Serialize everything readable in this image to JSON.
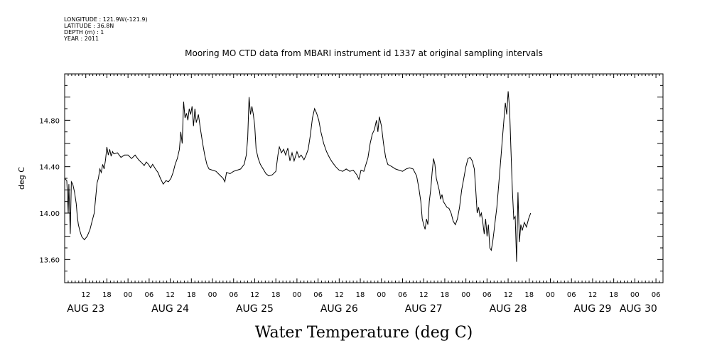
{
  "meta": {
    "lines": [
      "LONGITUDE : 121.9W(-121.9)",
      "LATITUDE : 36.8N",
      "DEPTH (m) : 1",
      "YEAR : 2011"
    ]
  },
  "chart_data": {
    "type": "line",
    "title": "Mooring MO CTD data from MBARI instrument id 1337 at original sampling intervals",
    "xlabel": "Water Temperature (deg C)",
    "ylabel": "deg C",
    "x_units": "hours since Aug 22 2011 00:00",
    "xlim": [
      6,
      176
    ],
    "ylim": [
      13.4,
      15.2
    ],
    "yticks": [
      13.6,
      14.0,
      14.4,
      14.8
    ],
    "ytick_labels": [
      "13.60",
      "14.00",
      "14.40",
      "14.80"
    ],
    "xticks": [
      {
        "t": 12,
        "label": "12"
      },
      {
        "t": 18,
        "label": "18"
      },
      {
        "t": 24,
        "label": "00"
      },
      {
        "t": 30,
        "label": "06"
      },
      {
        "t": 36,
        "label": "12"
      },
      {
        "t": 42,
        "label": "18"
      },
      {
        "t": 48,
        "label": "00"
      },
      {
        "t": 54,
        "label": "06"
      },
      {
        "t": 60,
        "label": "12"
      },
      {
        "t": 66,
        "label": "18"
      },
      {
        "t": 72,
        "label": "00"
      },
      {
        "t": 78,
        "label": "06"
      },
      {
        "t": 84,
        "label": "12"
      },
      {
        "t": 90,
        "label": "18"
      },
      {
        "t": 96,
        "label": "00"
      },
      {
        "t": 102,
        "label": "06"
      },
      {
        "t": 108,
        "label": "12"
      },
      {
        "t": 114,
        "label": "18"
      },
      {
        "t": 120,
        "label": "00"
      },
      {
        "t": 126,
        "label": "06"
      },
      {
        "t": 132,
        "label": "12"
      },
      {
        "t": 138,
        "label": "18"
      },
      {
        "t": 144,
        "label": "00"
      },
      {
        "t": 150,
        "label": "06"
      },
      {
        "t": 156,
        "label": "12"
      },
      {
        "t": 162,
        "label": "18"
      },
      {
        "t": 168,
        "label": "00"
      },
      {
        "t": 174,
        "label": "06"
      }
    ],
    "date_labels": [
      {
        "t": 12,
        "label": "AUG 23"
      },
      {
        "t": 36,
        "label": "AUG 24"
      },
      {
        "t": 60,
        "label": "AUG 25"
      },
      {
        "t": 84,
        "label": "AUG 26"
      },
      {
        "t": 108,
        "label": "AUG 27"
      },
      {
        "t": 132,
        "label": "AUG 28"
      },
      {
        "t": 156,
        "label": "AUG 29"
      },
      {
        "t": 169,
        "label": "AUG 30"
      }
    ],
    "series": [
      {
        "values": [
          [
            6.0,
            14.3
          ],
          [
            6.6,
            14.28
          ],
          [
            7.0,
            14.0
          ],
          [
            7.2,
            14.25
          ],
          [
            7.6,
            13.82
          ],
          [
            7.9,
            14.27
          ],
          [
            8.3,
            14.25
          ],
          [
            8.8,
            14.18
          ],
          [
            9.3,
            14.08
          ],
          [
            9.6,
            13.97
          ],
          [
            9.9,
            13.9
          ],
          [
            10.3,
            13.85
          ],
          [
            10.8,
            13.8
          ],
          [
            11.6,
            13.77
          ],
          [
            12.4,
            13.8
          ],
          [
            13.2,
            13.86
          ],
          [
            13.8,
            13.93
          ],
          [
            14.4,
            14.0
          ],
          [
            14.8,
            14.13
          ],
          [
            15.2,
            14.26
          ],
          [
            15.6,
            14.3
          ],
          [
            16.0,
            14.38
          ],
          [
            16.4,
            14.35
          ],
          [
            16.8,
            14.42
          ],
          [
            17.2,
            14.38
          ],
          [
            17.6,
            14.46
          ],
          [
            18.0,
            14.57
          ],
          [
            18.4,
            14.5
          ],
          [
            18.8,
            14.55
          ],
          [
            19.2,
            14.49
          ],
          [
            19.6,
            14.53
          ],
          [
            20.0,
            14.51
          ],
          [
            21.0,
            14.52
          ],
          [
            22.0,
            14.48
          ],
          [
            23.0,
            14.5
          ],
          [
            24.0,
            14.5
          ],
          [
            25.0,
            14.47
          ],
          [
            26.0,
            14.5
          ],
          [
            27.0,
            14.46
          ],
          [
            28.0,
            14.43
          ],
          [
            28.6,
            14.41
          ],
          [
            29.2,
            14.44
          ],
          [
            29.8,
            14.42
          ],
          [
            30.4,
            14.39
          ],
          [
            31.0,
            14.42
          ],
          [
            31.8,
            14.38
          ],
          [
            32.5,
            14.35
          ],
          [
            33.2,
            14.3
          ],
          [
            34.0,
            14.25
          ],
          [
            34.8,
            14.28
          ],
          [
            35.5,
            14.27
          ],
          [
            36.2,
            14.3
          ],
          [
            36.8,
            14.35
          ],
          [
            37.4,
            14.42
          ],
          [
            38.0,
            14.47
          ],
          [
            38.6,
            14.55
          ],
          [
            39.0,
            14.7
          ],
          [
            39.4,
            14.6
          ],
          [
            39.8,
            14.96
          ],
          [
            40.2,
            14.82
          ],
          [
            40.6,
            14.86
          ],
          [
            41.0,
            14.8
          ],
          [
            41.4,
            14.9
          ],
          [
            41.8,
            14.85
          ],
          [
            42.2,
            14.92
          ],
          [
            42.6,
            14.75
          ],
          [
            43.0,
            14.9
          ],
          [
            43.4,
            14.78
          ],
          [
            44.0,
            14.85
          ],
          [
            44.6,
            14.72
          ],
          [
            45.2,
            14.6
          ],
          [
            45.8,
            14.5
          ],
          [
            46.4,
            14.42
          ],
          [
            47.0,
            14.38
          ],
          [
            48.0,
            14.37
          ],
          [
            49.0,
            14.36
          ],
          [
            50.0,
            14.33
          ],
          [
            51.0,
            14.3
          ],
          [
            51.5,
            14.27
          ],
          [
            52.0,
            14.35
          ],
          [
            53.0,
            14.34
          ],
          [
            54.0,
            14.36
          ],
          [
            55.0,
            14.37
          ],
          [
            56.0,
            14.38
          ],
          [
            57.0,
            14.42
          ],
          [
            57.6,
            14.5
          ],
          [
            58.0,
            14.65
          ],
          [
            58.4,
            15.0
          ],
          [
            58.8,
            14.85
          ],
          [
            59.2,
            14.92
          ],
          [
            59.6,
            14.85
          ],
          [
            60.0,
            14.75
          ],
          [
            60.4,
            14.55
          ],
          [
            61.0,
            14.47
          ],
          [
            61.6,
            14.42
          ],
          [
            62.4,
            14.38
          ],
          [
            63.2,
            14.34
          ],
          [
            64.0,
            14.32
          ],
          [
            65.0,
            14.33
          ],
          [
            66.0,
            14.36
          ],
          [
            66.6,
            14.5
          ],
          [
            67.0,
            14.57
          ],
          [
            67.6,
            14.52
          ],
          [
            68.2,
            14.55
          ],
          [
            68.8,
            14.5
          ],
          [
            69.4,
            14.56
          ],
          [
            70.0,
            14.45
          ],
          [
            70.6,
            14.52
          ],
          [
            71.2,
            14.45
          ],
          [
            72.0,
            14.53
          ],
          [
            72.6,
            14.48
          ],
          [
            73.2,
            14.5
          ],
          [
            74.0,
            14.46
          ],
          [
            74.6,
            14.5
          ],
          [
            75.2,
            14.55
          ],
          [
            75.8,
            14.67
          ],
          [
            76.4,
            14.82
          ],
          [
            77.0,
            14.9
          ],
          [
            77.6,
            14.86
          ],
          [
            78.2,
            14.8
          ],
          [
            78.8,
            14.7
          ],
          [
            79.6,
            14.6
          ],
          [
            80.4,
            14.53
          ],
          [
            81.2,
            14.48
          ],
          [
            82.0,
            14.44
          ],
          [
            83.0,
            14.4
          ],
          [
            84.0,
            14.37
          ],
          [
            85.0,
            14.36
          ],
          [
            86.0,
            14.38
          ],
          [
            87.0,
            14.36
          ],
          [
            88.0,
            14.37
          ],
          [
            89.0,
            14.33
          ],
          [
            89.6,
            14.29
          ],
          [
            90.2,
            14.37
          ],
          [
            91.0,
            14.36
          ],
          [
            91.6,
            14.42
          ],
          [
            92.2,
            14.48
          ],
          [
            92.8,
            14.6
          ],
          [
            93.4,
            14.68
          ],
          [
            94.0,
            14.72
          ],
          [
            94.6,
            14.8
          ],
          [
            95.0,
            14.7
          ],
          [
            95.4,
            14.83
          ],
          [
            96.0,
            14.75
          ],
          [
            96.6,
            14.6
          ],
          [
            97.2,
            14.48
          ],
          [
            97.8,
            14.42
          ],
          [
            98.4,
            14.41
          ],
          [
            99.0,
            14.4
          ],
          [
            100.0,
            14.38
          ],
          [
            101.0,
            14.37
          ],
          [
            102.0,
            14.36
          ],
          [
            103.0,
            14.38
          ],
          [
            104.0,
            14.39
          ],
          [
            105.0,
            14.38
          ],
          [
            106.0,
            14.32
          ],
          [
            106.6,
            14.22
          ],
          [
            107.2,
            14.1
          ],
          [
            107.6,
            13.95
          ],
          [
            108.0,
            13.9
          ],
          [
            108.4,
            13.86
          ],
          [
            108.8,
            13.95
          ],
          [
            109.2,
            13.9
          ],
          [
            109.6,
            14.1
          ],
          [
            110.0,
            14.2
          ],
          [
            110.4,
            14.35
          ],
          [
            110.8,
            14.47
          ],
          [
            111.2,
            14.42
          ],
          [
            111.6,
            14.3
          ],
          [
            112.0,
            14.25
          ],
          [
            112.4,
            14.2
          ],
          [
            112.8,
            14.12
          ],
          [
            113.2,
            14.16
          ],
          [
            113.6,
            14.1
          ],
          [
            114.0,
            14.08
          ],
          [
            114.6,
            14.05
          ],
          [
            115.2,
            14.04
          ],
          [
            115.8,
            14.0
          ],
          [
            116.4,
            13.93
          ],
          [
            117.0,
            13.9
          ],
          [
            117.6,
            13.95
          ],
          [
            118.2,
            14.05
          ],
          [
            118.8,
            14.2
          ],
          [
            119.4,
            14.3
          ],
          [
            120.0,
            14.4
          ],
          [
            120.6,
            14.47
          ],
          [
            121.2,
            14.48
          ],
          [
            121.8,
            14.45
          ],
          [
            122.4,
            14.38
          ],
          [
            122.8,
            14.2
          ],
          [
            123.2,
            14.0
          ],
          [
            123.6,
            14.05
          ],
          [
            124.0,
            13.97
          ],
          [
            124.4,
            14.0
          ],
          [
            124.8,
            13.92
          ],
          [
            125.2,
            13.82
          ],
          [
            125.6,
            13.95
          ],
          [
            126.0,
            13.8
          ],
          [
            126.4,
            13.9
          ],
          [
            126.8,
            13.7
          ],
          [
            127.2,
            13.68
          ],
          [
            127.6,
            13.75
          ],
          [
            128.0,
            13.85
          ],
          [
            128.4,
            13.95
          ],
          [
            128.8,
            14.05
          ],
          [
            129.2,
            14.2
          ],
          [
            129.6,
            14.35
          ],
          [
            130.0,
            14.5
          ],
          [
            130.4,
            14.65
          ],
          [
            130.8,
            14.8
          ],
          [
            131.2,
            14.95
          ],
          [
            131.6,
            14.85
          ],
          [
            132.0,
            15.05
          ],
          [
            132.4,
            14.9
          ],
          [
            132.8,
            14.55
          ],
          [
            133.2,
            14.2
          ],
          [
            133.6,
            13.95
          ],
          [
            134.0,
            13.97
          ],
          [
            134.4,
            13.58
          ],
          [
            134.8,
            14.18
          ],
          [
            135.2,
            13.75
          ],
          [
            135.6,
            13.9
          ],
          [
            136.0,
            13.85
          ],
          [
            136.6,
            13.92
          ],
          [
            137.2,
            13.88
          ],
          [
            137.8,
            13.95
          ],
          [
            138.4,
            14.0
          ]
        ]
      }
    ]
  }
}
